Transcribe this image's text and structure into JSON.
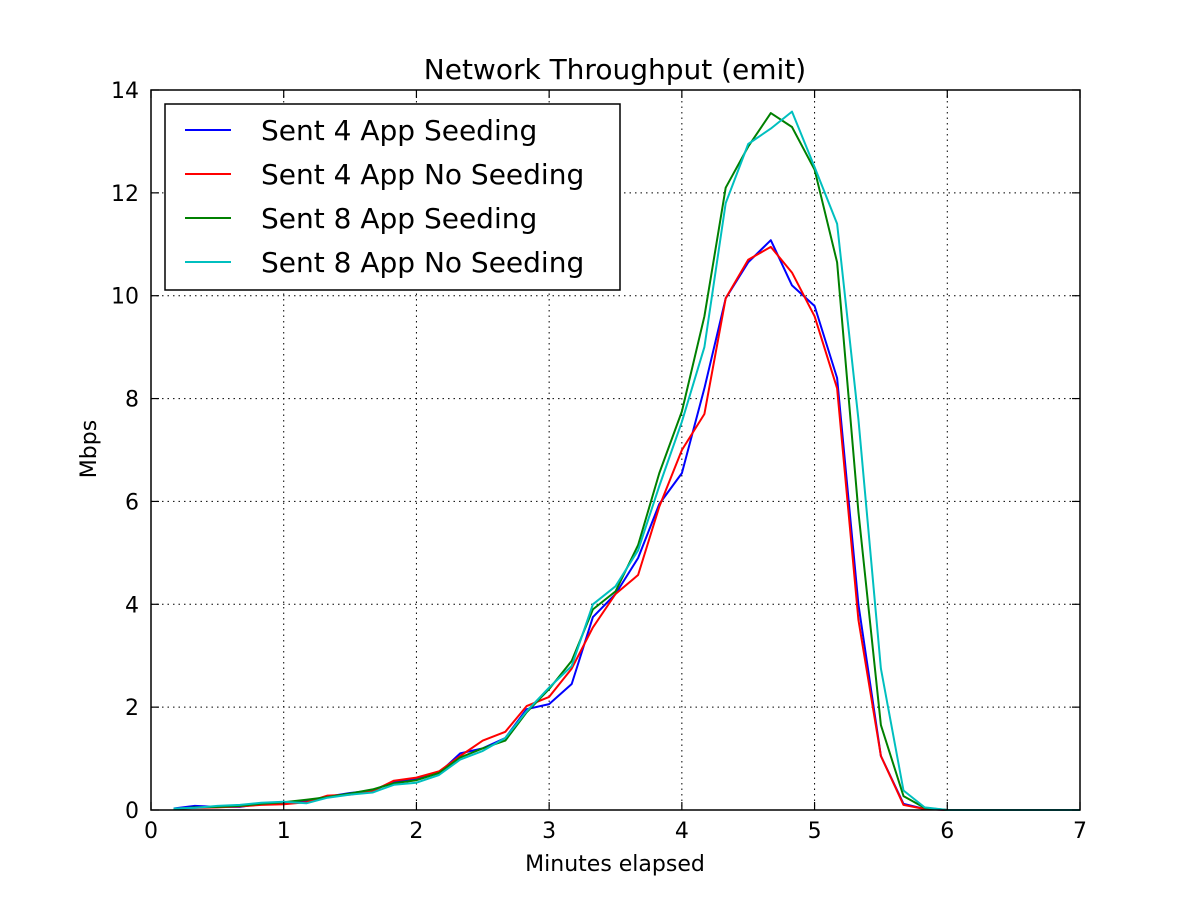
{
  "chart_data": {
    "type": "line",
    "title": "Network Throughput (emit)",
    "xlabel": "Minutes elapsed",
    "ylabel": "Mbps",
    "xlim": [
      0,
      7
    ],
    "ylim": [
      0,
      14
    ],
    "xticks": [
      0,
      1,
      2,
      3,
      4,
      5,
      6,
      7
    ],
    "yticks": [
      0,
      2,
      4,
      6,
      8,
      10,
      12,
      14
    ],
    "grid": true,
    "legend_position": "top-left",
    "series": [
      {
        "name": "Sent 4 App Seeding",
        "color": "#0000ff",
        "x": [
          0.17,
          0.33,
          0.5,
          0.67,
          0.83,
          1.0,
          1.17,
          1.33,
          1.5,
          1.67,
          1.83,
          2.0,
          2.17,
          2.33,
          2.5,
          2.67,
          2.83,
          3.0,
          3.17,
          3.33,
          3.5,
          3.67,
          3.83,
          4.0,
          4.17,
          4.33,
          4.5,
          4.67,
          4.83,
          5.0,
          5.17,
          5.33,
          5.5,
          5.67,
          5.83,
          6.0,
          6.17,
          6.33,
          6.5,
          6.67,
          6.83,
          7.0
        ],
        "values": [
          0.03,
          0.08,
          0.06,
          0.06,
          0.12,
          0.14,
          0.17,
          0.26,
          0.33,
          0.38,
          0.55,
          0.6,
          0.72,
          1.1,
          1.2,
          1.4,
          1.96,
          2.06,
          2.45,
          3.75,
          4.2,
          4.9,
          5.95,
          6.55,
          8.2,
          9.95,
          10.65,
          11.08,
          10.2,
          9.8,
          8.4,
          4.0,
          1.05,
          0.12,
          0.02,
          0.0,
          0.0,
          0.0,
          0.0,
          0.0,
          0.0,
          0.0
        ]
      },
      {
        "name": "Sent 4 App No Seeding",
        "color": "#ff0000",
        "x": [
          0.17,
          0.33,
          0.5,
          0.67,
          0.83,
          1.0,
          1.17,
          1.33,
          1.5,
          1.67,
          1.83,
          2.0,
          2.17,
          2.33,
          2.5,
          2.67,
          2.83,
          3.0,
          3.17,
          3.33,
          3.5,
          3.67,
          3.83,
          4.0,
          4.17,
          4.33,
          4.5,
          4.67,
          4.83,
          5.0,
          5.17,
          5.33,
          5.5,
          5.67,
          5.83,
          6.0,
          6.17,
          6.33,
          6.5,
          6.67,
          6.83,
          7.0
        ],
        "values": [
          0.02,
          0.04,
          0.05,
          0.07,
          0.1,
          0.11,
          0.15,
          0.28,
          0.3,
          0.37,
          0.57,
          0.63,
          0.75,
          1.05,
          1.35,
          1.52,
          2.02,
          2.2,
          2.75,
          3.55,
          4.2,
          4.57,
          5.9,
          7.0,
          7.7,
          9.95,
          10.7,
          10.95,
          10.45,
          9.6,
          8.2,
          3.7,
          1.05,
          0.1,
          0.02,
          0.0,
          0.0,
          0.0,
          0.0,
          0.0,
          0.0,
          0.0
        ]
      },
      {
        "name": "Sent 8 App Seeding",
        "color": "#008000",
        "x": [
          0.17,
          0.33,
          0.5,
          0.67,
          0.83,
          1.0,
          1.17,
          1.33,
          1.5,
          1.67,
          1.83,
          2.0,
          2.17,
          2.33,
          2.5,
          2.67,
          2.83,
          3.0,
          3.17,
          3.33,
          3.5,
          3.67,
          3.83,
          4.0,
          4.17,
          4.33,
          4.5,
          4.67,
          4.83,
          5.0,
          5.17,
          5.33,
          5.5,
          5.67,
          5.83,
          6.0,
          6.17,
          6.33,
          6.5,
          6.67,
          6.83,
          7.0
        ],
        "values": [
          0.02,
          0.05,
          0.06,
          0.08,
          0.12,
          0.15,
          0.2,
          0.25,
          0.32,
          0.4,
          0.52,
          0.58,
          0.72,
          1.02,
          1.2,
          1.35,
          1.9,
          2.35,
          2.9,
          3.9,
          4.25,
          5.15,
          6.55,
          7.75,
          9.6,
          12.1,
          12.9,
          13.55,
          13.28,
          12.45,
          10.65,
          5.8,
          1.65,
          0.27,
          0.04,
          0.0,
          0.0,
          0.0,
          0.0,
          0.0,
          0.0,
          0.0
        ]
      },
      {
        "name": "Sent 8 App No Seeding",
        "color": "#00bfbf",
        "x": [
          0.17,
          0.33,
          0.5,
          0.67,
          0.83,
          1.0,
          1.17,
          1.33,
          1.5,
          1.67,
          1.83,
          2.0,
          2.17,
          2.33,
          2.5,
          2.67,
          2.83,
          3.0,
          3.17,
          3.33,
          3.5,
          3.67,
          3.83,
          4.0,
          4.17,
          4.33,
          4.5,
          4.67,
          4.83,
          5.0,
          5.17,
          5.33,
          5.5,
          5.67,
          5.83,
          6.0,
          6.17,
          6.33,
          6.5,
          6.67,
          6.83,
          7.0
        ],
        "values": [
          0.03,
          0.04,
          0.08,
          0.1,
          0.14,
          0.16,
          0.13,
          0.24,
          0.3,
          0.34,
          0.49,
          0.53,
          0.68,
          0.98,
          1.15,
          1.4,
          1.92,
          2.38,
          2.8,
          4.0,
          4.35,
          5.05,
          6.3,
          7.55,
          9.0,
          11.8,
          12.95,
          13.25,
          13.58,
          12.5,
          11.4,
          7.6,
          2.75,
          0.38,
          0.05,
          0.0,
          0.0,
          0.0,
          0.0,
          0.0,
          0.0,
          0.0
        ]
      }
    ]
  }
}
